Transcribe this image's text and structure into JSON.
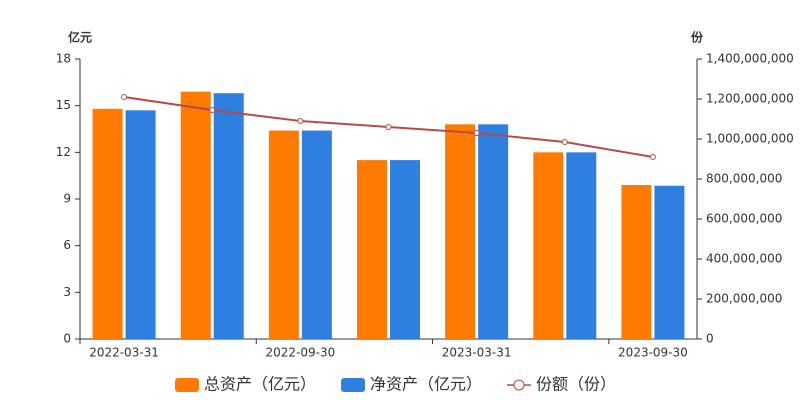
{
  "chart_data": {
    "type": "bar",
    "categories": [
      "2022-03-31",
      null,
      "2022-09-30",
      null,
      "2023-03-31",
      null,
      "2023-09-30"
    ],
    "y_unit": "亿元",
    "y2_unit": "份",
    "ylim": [
      0,
      18
    ],
    "yticks": [
      0,
      3,
      6,
      9,
      12,
      15,
      18
    ],
    "y2lim": [
      0,
      1400000000
    ],
    "y2ticks": [
      0,
      {
        "value": 200000000,
        "label": "200,000,000"
      },
      {
        "value": 400000000,
        "label": "400,000,000"
      },
      {
        "value": 600000000,
        "label": "600,000,000"
      },
      {
        "value": 800000000,
        "label": "800,000,000"
      },
      {
        "value": 1000000000,
        "label": "1,000,000,000"
      },
      {
        "value": 1200000000,
        "label": "1,200,000,000"
      },
      {
        "value": 1400000000,
        "label": "1,400,000,000"
      }
    ],
    "series": [
      {
        "name": "总资产（亿元）",
        "color": "#ff7a00",
        "kind": "bar",
        "values": [
          14.8,
          15.9,
          13.4,
          11.5,
          13.8,
          12.0,
          9.9
        ]
      },
      {
        "name": "净资产（亿元）",
        "color": "#2e7fe0",
        "kind": "bar",
        "values": [
          14.7,
          15.8,
          13.4,
          11.5,
          13.8,
          12.0,
          9.85
        ]
      },
      {
        "name": "份额（份）",
        "color": "#b84a47",
        "kind": "line",
        "axis": "y2",
        "values": [
          1210000000,
          1145000000,
          1090000000,
          1060000000,
          1030000000,
          985000000,
          910000000
        ]
      }
    ]
  }
}
